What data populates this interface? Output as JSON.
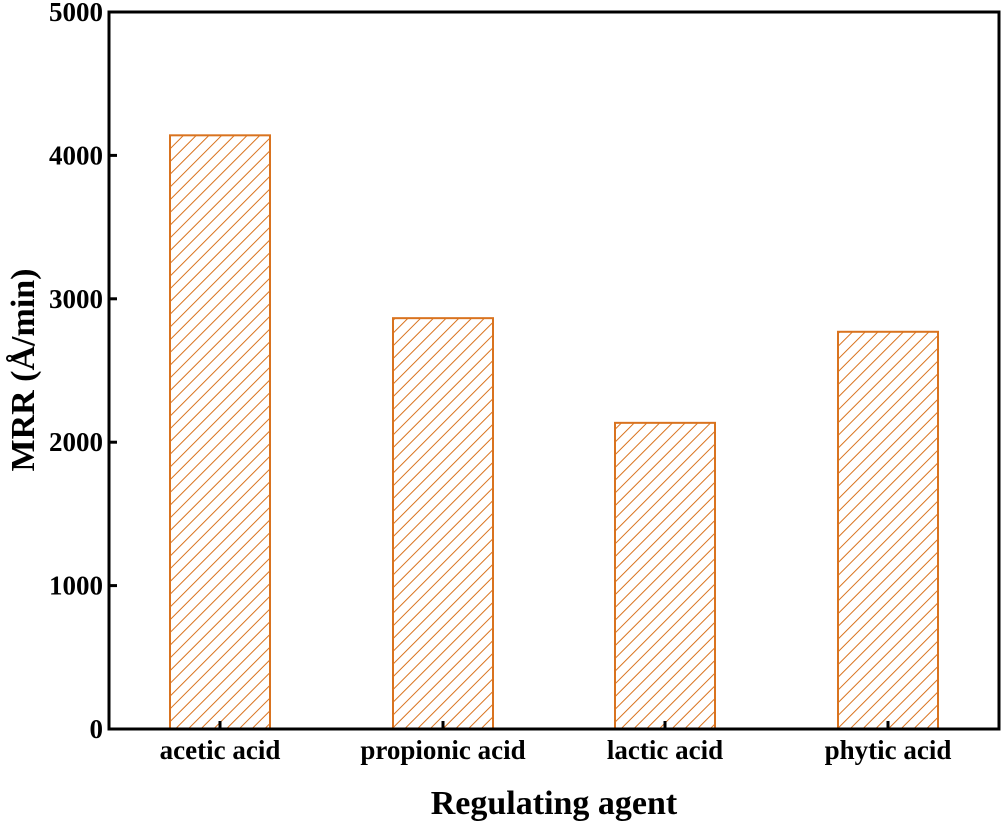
{
  "chart_data": {
    "type": "bar",
    "categories": [
      "acetic acid",
      "propionic acid",
      "lactic acid",
      "phytic acid"
    ],
    "values": [
      4140,
      2865,
      2135,
      2770
    ],
    "xlabel": "Regulating agent",
    "ylabel": "MRR (Å/min)",
    "ylim": [
      0,
      5000
    ],
    "yticks": [
      "0",
      "1000",
      "2000",
      "3000",
      "4000",
      "5000"
    ],
    "bar_color": "#d9731f",
    "bar_fill": "diagonal-hatch",
    "grid": false,
    "legend": "none"
  }
}
